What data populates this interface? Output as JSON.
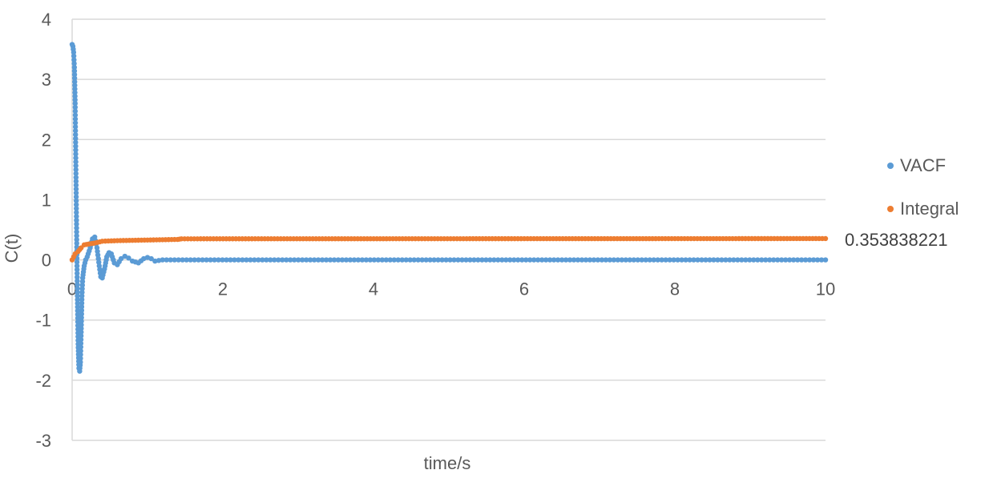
{
  "chart_data": {
    "type": "scatter",
    "title": "",
    "xlabel": "time/s",
    "ylabel": "C(t)",
    "xlim": [
      0,
      10
    ],
    "ylim": [
      -3,
      4
    ],
    "x_ticks": [
      "0",
      "2",
      "4",
      "6",
      "8",
      "10"
    ],
    "y_ticks": [
      "4",
      "3",
      "2",
      "1",
      "0",
      "-1",
      "-2",
      "-3"
    ],
    "grid": "horizontal",
    "legend_position": "right",
    "annotation": "0.353838221",
    "series": [
      {
        "name": "VACF",
        "color": "#5B9BD5",
        "points": [
          [
            0.0,
            3.58
          ],
          [
            0.01,
            3.55
          ],
          [
            0.02,
            3.45
          ],
          [
            0.03,
            3.2
          ],
          [
            0.04,
            2.6
          ],
          [
            0.05,
            1.5
          ],
          [
            0.06,
            0.4
          ],
          [
            0.07,
            -0.6
          ],
          [
            0.08,
            -1.4
          ],
          [
            0.09,
            -1.8
          ],
          [
            0.1,
            -1.85
          ],
          [
            0.11,
            -1.7
          ],
          [
            0.12,
            -1.2
          ],
          [
            0.13,
            -0.6
          ],
          [
            0.14,
            -0.3
          ],
          [
            0.16,
            -0.1
          ],
          [
            0.18,
            0.0
          ],
          [
            0.2,
            0.05
          ],
          [
            0.24,
            0.2
          ],
          [
            0.27,
            0.35
          ],
          [
            0.3,
            0.38
          ],
          [
            0.33,
            0.2
          ],
          [
            0.36,
            -0.1
          ],
          [
            0.38,
            -0.28
          ],
          [
            0.4,
            -0.3
          ],
          [
            0.43,
            -0.15
          ],
          [
            0.46,
            0.05
          ],
          [
            0.49,
            0.12
          ],
          [
            0.52,
            0.1
          ],
          [
            0.56,
            -0.05
          ],
          [
            0.6,
            -0.08
          ],
          [
            0.65,
            0.02
          ],
          [
            0.7,
            0.06
          ],
          [
            0.75,
            0.03
          ],
          [
            0.8,
            -0.02
          ],
          [
            0.88,
            -0.05
          ],
          [
            0.95,
            0.02
          ],
          [
            1.0,
            0.04
          ],
          [
            1.05,
            0.02
          ],
          [
            1.1,
            -0.02
          ],
          [
            1.2,
            0.0
          ],
          [
            10.0,
            0.0
          ]
        ]
      },
      {
        "name": "Integral",
        "color": "#ED7D31",
        "points": [
          [
            0.0,
            0.0
          ],
          [
            0.04,
            0.1
          ],
          [
            0.08,
            0.14
          ],
          [
            0.12,
            0.2
          ],
          [
            0.16,
            0.25
          ],
          [
            0.25,
            0.27
          ],
          [
            0.3,
            0.28
          ],
          [
            0.4,
            0.31
          ],
          [
            0.6,
            0.32
          ],
          [
            1.0,
            0.33
          ],
          [
            1.4,
            0.34
          ],
          [
            1.45,
            0.35
          ],
          [
            10.0,
            0.354
          ]
        ]
      }
    ]
  }
}
